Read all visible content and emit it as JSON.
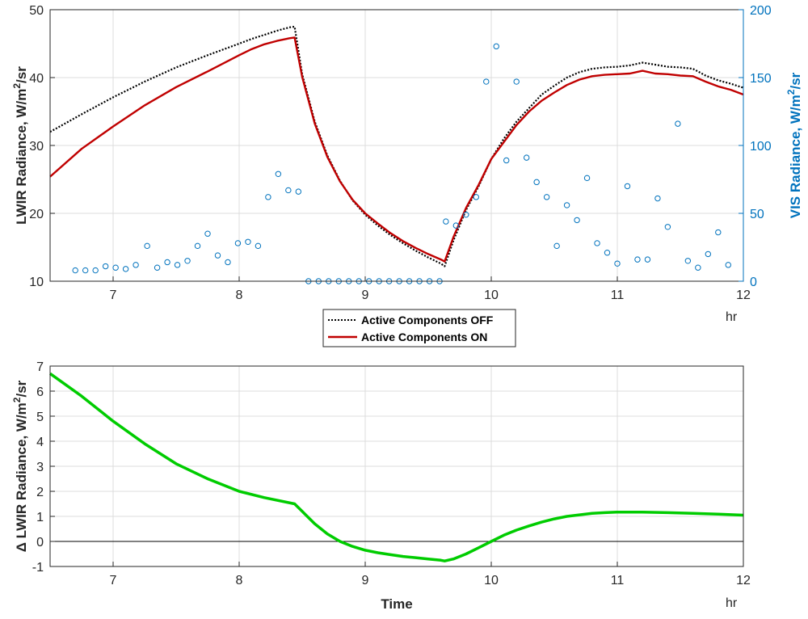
{
  "chart_data": [
    {
      "type": "line",
      "xlim": [
        6.5,
        12
      ],
      "x_ticks": [
        7,
        8,
        9,
        10,
        11,
        12
      ],
      "x_unit_label": "hr",
      "ylabel": "LWIR Radiance, W/m²/sr",
      "ylim": [
        10,
        50
      ],
      "y_ticks": [
        10,
        20,
        30,
        40,
        50
      ],
      "y2label": "VIS Radiance, W/m²/sr",
      "y2lim": [
        0,
        200
      ],
      "y2_ticks": [
        0,
        50,
        100,
        150,
        200
      ],
      "grid": true,
      "legend": {
        "placement": "below",
        "entries": [
          "Active Components OFF",
          "Active Components ON"
        ]
      },
      "series": [
        {
          "name": "Active Components OFF",
          "axis": "left",
          "style": "dotted",
          "color": "#000000",
          "x": [
            6.5,
            6.75,
            7.0,
            7.25,
            7.5,
            7.75,
            8.0,
            8.1,
            8.2,
            8.3,
            8.4,
            8.44,
            8.5,
            8.6,
            8.7,
            8.8,
            8.9,
            9.0,
            9.1,
            9.2,
            9.3,
            9.4,
            9.5,
            9.6,
            9.63,
            9.7,
            9.8,
            9.9,
            10.0,
            10.1,
            10.2,
            10.3,
            10.4,
            10.5,
            10.6,
            10.7,
            10.8,
            10.9,
            11.0,
            11.1,
            11.2,
            11.3,
            11.4,
            11.5,
            11.6,
            11.7,
            11.8,
            11.9,
            12.0
          ],
          "y": [
            32.0,
            34.6,
            37.1,
            39.4,
            41.5,
            43.3,
            45.0,
            45.7,
            46.3,
            46.9,
            47.4,
            47.5,
            40.5,
            33.5,
            28.5,
            24.8,
            21.9,
            19.8,
            18.2,
            16.8,
            15.6,
            14.5,
            13.5,
            12.6,
            12.2,
            16.0,
            20.5,
            24.0,
            28.0,
            31.0,
            33.5,
            35.5,
            37.5,
            38.8,
            40.0,
            40.8,
            41.3,
            41.5,
            41.6,
            41.8,
            42.2,
            41.9,
            41.6,
            41.5,
            41.3,
            40.3,
            39.6,
            39.1,
            38.5
          ]
        },
        {
          "name": "Active Components ON",
          "axis": "left",
          "style": "solid",
          "color": "#C00000",
          "x": [
            6.5,
            6.75,
            7.0,
            7.25,
            7.5,
            7.75,
            8.0,
            8.1,
            8.2,
            8.3,
            8.4,
            8.44,
            8.5,
            8.6,
            8.7,
            8.8,
            8.9,
            9.0,
            9.1,
            9.2,
            9.3,
            9.4,
            9.5,
            9.6,
            9.63,
            9.7,
            9.8,
            9.9,
            10.0,
            10.1,
            10.2,
            10.3,
            10.4,
            10.5,
            10.6,
            10.7,
            10.8,
            10.9,
            11.0,
            11.1,
            11.2,
            11.3,
            11.4,
            11.5,
            11.6,
            11.7,
            11.8,
            11.9,
            12.0
          ],
          "y": [
            25.4,
            29.5,
            32.8,
            35.9,
            38.6,
            40.9,
            43.3,
            44.2,
            44.9,
            45.4,
            45.8,
            45.9,
            40.1,
            33.2,
            28.3,
            24.7,
            22.0,
            20.0,
            18.5,
            17.1,
            15.9,
            14.9,
            14.0,
            13.2,
            12.9,
            16.5,
            20.8,
            24.2,
            28.0,
            30.5,
            33.0,
            35.0,
            36.6,
            37.8,
            38.9,
            39.7,
            40.2,
            40.4,
            40.5,
            40.6,
            41.0,
            40.6,
            40.5,
            40.3,
            40.2,
            39.4,
            38.7,
            38.2,
            37.5
          ]
        },
        {
          "name": "",
          "axis": "right",
          "style": "markers",
          "color": "#0072BD",
          "x": [
            6.7,
            6.78,
            6.86,
            6.94,
            7.02,
            7.1,
            7.18,
            7.27,
            7.35,
            7.43,
            7.51,
            7.59,
            7.67,
            7.75,
            7.83,
            7.91,
            7.99,
            8.07,
            8.15,
            8.23,
            8.31,
            8.39,
            8.47,
            8.55,
            8.63,
            8.71,
            8.79,
            8.87,
            8.95,
            9.03,
            9.11,
            9.19,
            9.27,
            9.35,
            9.43,
            9.51,
            9.59,
            9.64,
            9.72,
            9.8,
            9.88,
            9.96,
            10.04,
            10.12,
            10.2,
            10.28,
            10.36,
            10.44,
            10.52,
            10.6,
            10.68,
            10.76,
            10.84,
            10.92,
            11.0,
            11.08,
            11.16,
            11.24,
            11.32,
            11.4,
            11.48,
            11.56,
            11.64,
            11.72,
            11.8,
            11.88
          ],
          "y": [
            8,
            8,
            8,
            11,
            10,
            9,
            12,
            26,
            10,
            14,
            12,
            15,
            26,
            35,
            19,
            14,
            28,
            29,
            26,
            62,
            79,
            67,
            66,
            0,
            0,
            0,
            0,
            0,
            0,
            0,
            0,
            0,
            0,
            0,
            0,
            0,
            0,
            44,
            41,
            49,
            62,
            147,
            173,
            89,
            147,
            91,
            73,
            62,
            26,
            56,
            45,
            76,
            28,
            21,
            13,
            70,
            16,
            16,
            61,
            40,
            116,
            15,
            10,
            20,
            36,
            12
          ]
        }
      ]
    },
    {
      "type": "line",
      "xlim": [
        6.5,
        12
      ],
      "x_ticks": [
        7,
        8,
        9,
        10,
        11,
        12
      ],
      "x_unit_label": "hr",
      "xlabel": "Time",
      "ylabel": "Δ LWIR Radiance, W/m²/sr",
      "ylim": [
        -1,
        7
      ],
      "y_ticks": [
        -1,
        0,
        1,
        2,
        3,
        4,
        5,
        6,
        7
      ],
      "grid": true,
      "zero_line": true,
      "series": [
        {
          "name": "",
          "color": "#00CC00",
          "x": [
            6.5,
            6.75,
            7.0,
            7.25,
            7.5,
            7.75,
            8.0,
            8.2,
            8.44,
            8.5,
            8.6,
            8.7,
            8.8,
            8.9,
            9.0,
            9.1,
            9.2,
            9.3,
            9.4,
            9.5,
            9.6,
            9.63,
            9.7,
            9.8,
            9.9,
            10.0,
            10.1,
            10.2,
            10.3,
            10.4,
            10.5,
            10.6,
            10.7,
            10.8,
            10.9,
            11.0,
            11.2,
            11.4,
            11.6,
            11.8,
            12.0
          ],
          "y": [
            6.7,
            5.8,
            4.8,
            3.9,
            3.1,
            2.5,
            2.0,
            1.75,
            1.5,
            1.2,
            0.7,
            0.3,
            0.0,
            -0.2,
            -0.35,
            -0.45,
            -0.53,
            -0.6,
            -0.65,
            -0.7,
            -0.75,
            -0.78,
            -0.7,
            -0.5,
            -0.25,
            0.0,
            0.25,
            0.45,
            0.62,
            0.77,
            0.9,
            1.0,
            1.06,
            1.12,
            1.15,
            1.17,
            1.17,
            1.15,
            1.12,
            1.09,
            1.05
          ]
        }
      ]
    }
  ]
}
